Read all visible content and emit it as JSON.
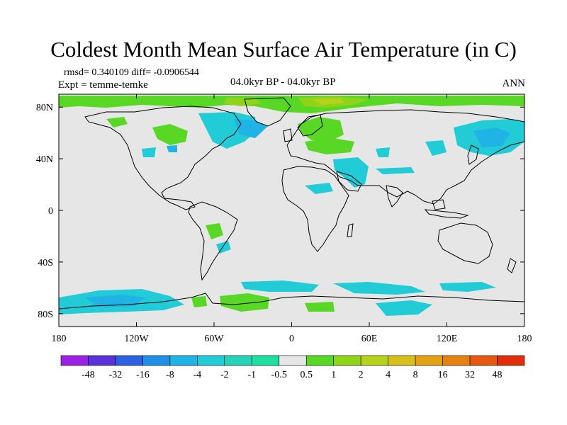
{
  "title": "Coldest Month Mean Surface Air Temperature (in C)",
  "stats": "rmsd= 0.340109 diff= -0.0906544",
  "experiment": "Expt = temme-temke",
  "period": "04.0kyr BP - 04.0kyr BP",
  "season": "ANN",
  "map": {
    "lat_ticks": [
      80,
      40,
      0,
      -40,
      -80
    ],
    "lat_labels": [
      "80N",
      "40N",
      "0",
      "40S",
      "80S"
    ],
    "lon_ticks": [
      -180,
      -120,
      -60,
      0,
      60,
      120,
      180
    ],
    "lon_labels": [
      "180",
      "120W",
      "60W",
      "0",
      "60E",
      "120E",
      "180"
    ],
    "lat_range": [
      -90,
      90
    ],
    "lon_range": [
      -180,
      180
    ],
    "background_color": "#e6e6e6"
  },
  "colorbar": {
    "colors": [
      "#9b21e6",
      "#5a30d9",
      "#2b60e0",
      "#1e90e8",
      "#1fb3e6",
      "#22ccd6",
      "#25d4b8",
      "#1ddfa0",
      "#e6e6e6",
      "#58d824",
      "#8fd418",
      "#b7d21a",
      "#d8c01a",
      "#e3a216",
      "#e58212",
      "#e4580f",
      "#e22d0a"
    ],
    "labels": [
      "-48",
      "-32",
      "-16",
      "-8",
      "-4",
      "-2",
      "-1",
      "-0.5",
      "0.5",
      "1",
      "2",
      "4",
      "8",
      "16",
      "32",
      "48"
    ]
  }
}
